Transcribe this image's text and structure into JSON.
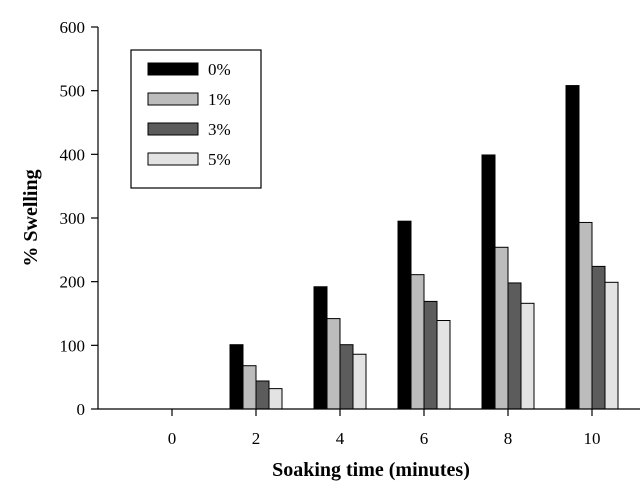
{
  "chart_data": {
    "type": "bar",
    "xlabel": "Soaking time (minutes)",
    "ylabel": "% Swelling",
    "categories": [
      "0",
      "2",
      "4",
      "6",
      "8",
      "10"
    ],
    "ylim": [
      0,
      600
    ],
    "yticks": [
      0,
      100,
      200,
      300,
      400,
      500,
      600
    ],
    "legend_position": "top-left",
    "grid": false,
    "series": [
      {
        "name": "0%",
        "color": "#000000",
        "values": [
          0,
          101,
          192,
          295,
          399,
          508
        ]
      },
      {
        "name": "1%",
        "color": "#bcbcbc",
        "values": [
          0,
          68,
          142,
          211,
          254,
          293
        ]
      },
      {
        "name": "3%",
        "color": "#5c5c5c",
        "values": [
          0,
          44,
          101,
          169,
          198,
          224
        ]
      },
      {
        "name": "5%",
        "color": "#e3e3e3",
        "values": [
          0,
          32,
          86,
          139,
          166,
          199
        ]
      }
    ]
  }
}
